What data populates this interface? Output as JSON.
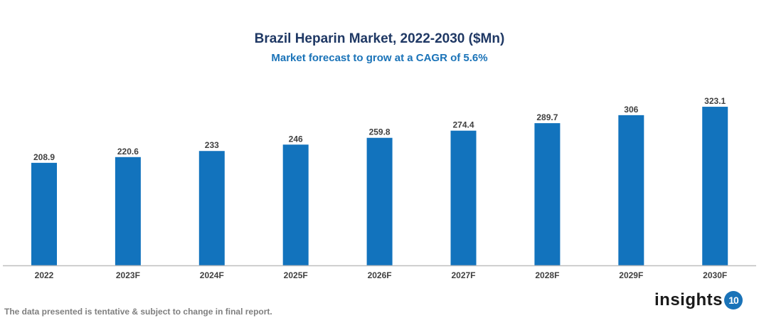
{
  "chart_data": {
    "type": "bar",
    "title": "Brazil Heparin Market, 2022-2030 ($Mn)",
    "subtitle": "Market forecast to grow at a CAGR of 5.6%",
    "categories": [
      "2022",
      "2023F",
      "2024F",
      "2025F",
      "2026F",
      "2027F",
      "2028F",
      "2029F",
      "2030F"
    ],
    "values": [
      208.9,
      220.6,
      233,
      246,
      259.8,
      274.4,
      289.7,
      306,
      323.1
    ],
    "value_labels": [
      "208.9",
      "220.6",
      "233",
      "246",
      "259.8",
      "274.4",
      "289.7",
      "306",
      "323.1"
    ],
    "xlabel": "",
    "ylabel": "",
    "ylim": [
      0,
      340
    ],
    "grid": false,
    "bar_color": "#1273bd"
  },
  "footer": "The data presented is tentative & subject to change in final report.",
  "logo": {
    "text": "insights",
    "badge": "10"
  }
}
